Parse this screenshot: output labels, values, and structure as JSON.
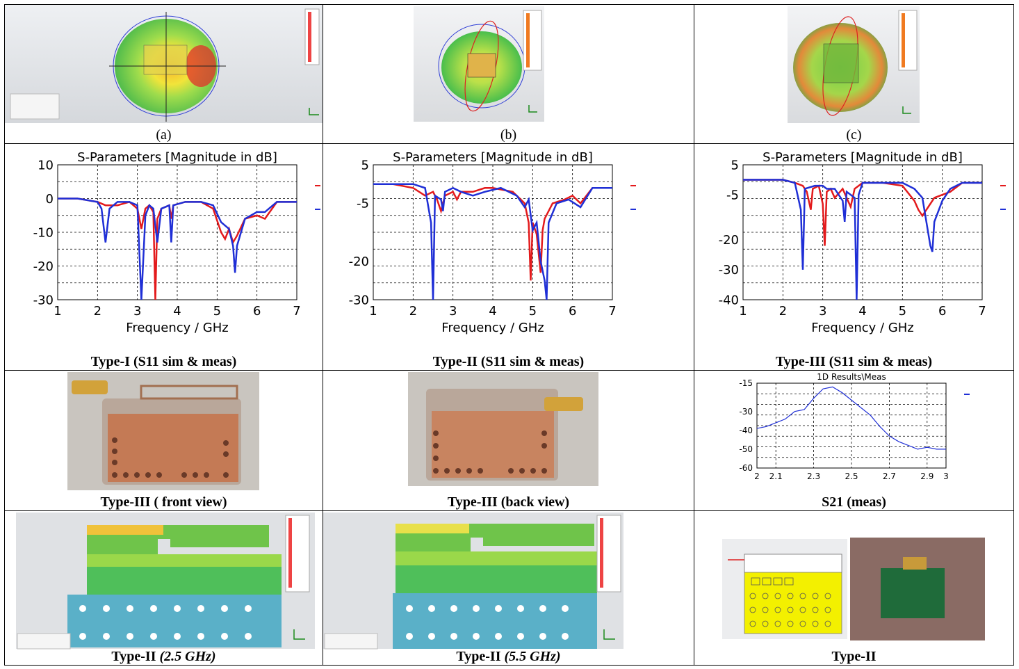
{
  "row1": {
    "captions": [
      "(a)",
      "(b)",
      "(c)"
    ]
  },
  "row2": {
    "plot_title": "S-Parameters [Magnitude in dB]",
    "xlabel": "Frequency / GHz",
    "captions": [
      "Type-I (S11 sim & meas)",
      "Type-II (S11 sim & meas)",
      "Type-III (S11 sim & meas)"
    ]
  },
  "row3": {
    "captions": [
      "Type-III ( front view)",
      "Type-III (back view)",
      "S21 (meas)"
    ],
    "s21_title": "1D Results\\Meas"
  },
  "row4": {
    "caption_type": "Type-II",
    "caption_freq_1": "(2.5 GHz)",
    "caption_freq_2": "(5.5 GHz)",
    "caption_3": "Type-II"
  },
  "colors": {
    "sim": "#e31a1c",
    "meas": "#1f2fd6",
    "s21": "#1f2fd6"
  },
  "chart_data": [
    {
      "type": "line",
      "title": "S-Parameters [Magnitude in dB]",
      "xlabel": "Frequency / GHz",
      "ylabel": "",
      "xlim": [
        1,
        7
      ],
      "ylim": [
        -30,
        10
      ],
      "xticks": [
        1,
        2,
        3,
        4,
        5,
        6,
        7
      ],
      "yticks": [
        10,
        0,
        -10,
        -20,
        -30
      ],
      "series": [
        {
          "color": "red",
          "x": [
            1,
            1.5,
            2,
            2.2,
            2.5,
            2.8,
            3.0,
            3.1,
            3.2,
            3.3,
            3.4,
            3.45,
            3.5,
            3.6,
            3.8,
            3.85,
            3.9,
            4.2,
            4.6,
            4.9,
            5.1,
            5.2,
            5.3,
            5.4,
            5.5,
            5.7,
            6.0,
            6.2,
            6.5,
            7
          ],
          "y": [
            0,
            0,
            -1,
            -2,
            -2,
            -1,
            -3,
            -9,
            -3,
            -2,
            -4,
            -30,
            -6,
            -3,
            -2,
            -6,
            -2,
            -1,
            -1,
            -3,
            -10,
            -12,
            -9,
            -13,
            -11,
            -6,
            -5,
            -6,
            -1,
            -1
          ]
        },
        {
          "color": "blue",
          "x": [
            1,
            1.5,
            2,
            2.1,
            2.2,
            2.3,
            2.5,
            2.8,
            3.0,
            3.1,
            3.2,
            3.3,
            3.4,
            3.5,
            3.6,
            3.8,
            3.85,
            3.9,
            4.2,
            4.6,
            4.9,
            5.1,
            5.2,
            5.3,
            5.4,
            5.45,
            5.5,
            5.7,
            6.0,
            6.2,
            6.5,
            7
          ],
          "y": [
            0,
            0,
            -1,
            -3,
            -13,
            -3,
            -1,
            -1,
            -2,
            -30,
            -5,
            -2,
            -3,
            -13,
            -3,
            -2,
            -13,
            -2,
            -1,
            -1,
            -2,
            -7,
            -8,
            -9,
            -14,
            -22,
            -14,
            -6,
            -4,
            -4,
            -1,
            -1
          ]
        }
      ]
    },
    {
      "type": "line",
      "title": "S-Parameters [Magnitude in dB]",
      "xlabel": "Frequency / GHz",
      "ylabel": "",
      "xlim": [
        1,
        7
      ],
      "ylim": [
        -30,
        5
      ],
      "xticks": [
        1,
        2,
        3,
        4,
        5,
        6,
        7
      ],
      "yticks": [
        5,
        -5,
        -20,
        -30
      ],
      "series": [
        {
          "color": "red",
          "x": [
            1,
            1.5,
            2,
            2.3,
            2.5,
            2.6,
            2.7,
            2.8,
            3.0,
            3.1,
            3.2,
            3.5,
            3.8,
            4.0,
            4.5,
            4.8,
            4.9,
            4.95,
            5.0,
            5.1,
            5.2,
            5.25,
            5.3,
            5.5,
            5.8,
            6.0,
            6.2,
            6.5,
            7
          ],
          "y": [
            0,
            0,
            -1,
            -3,
            -2,
            -4,
            -7,
            -3,
            -2,
            -4,
            -2,
            -2,
            -1,
            -1,
            -2,
            -5,
            -10,
            -25,
            -10,
            -13,
            -23,
            -12,
            -9,
            -5,
            -4,
            -3,
            -5,
            -1,
            -1
          ]
        },
        {
          "color": "blue",
          "x": [
            1,
            1.5,
            2,
            2.3,
            2.45,
            2.5,
            2.55,
            2.7,
            2.75,
            2.8,
            3.0,
            3.2,
            3.5,
            3.8,
            4.2,
            4.6,
            4.8,
            4.9,
            5.0,
            5.1,
            5.2,
            5.3,
            5.35,
            5.4,
            5.6,
            5.9,
            6.2,
            6.5,
            7
          ],
          "y": [
            0,
            0,
            0,
            -1,
            -10,
            -30,
            -3,
            -4,
            -7,
            -2,
            -1,
            -2,
            -3,
            -2,
            -1,
            -3,
            -6,
            -4,
            -12,
            -10,
            -20,
            -25,
            -30,
            -10,
            -5,
            -4,
            -6,
            -1,
            -1
          ]
        }
      ]
    },
    {
      "type": "line",
      "title": "S-Parameters [Magnitude in dB]",
      "xlabel": "Frequency / GHz",
      "ylabel": "",
      "xlim": [
        1,
        7
      ],
      "ylim": [
        -40,
        5
      ],
      "xticks": [
        1,
        2,
        3,
        4,
        5,
        6,
        7
      ],
      "yticks": [
        5,
        -5,
        -20,
        -30,
        -40
      ],
      "series": [
        {
          "color": "red",
          "x": [
            1,
            1.5,
            2,
            2.3,
            2.5,
            2.6,
            2.7,
            2.75,
            2.9,
            3.0,
            3.05,
            3.1,
            3.2,
            3.3,
            3.5,
            3.7,
            3.8,
            4.0,
            4.5,
            5.0,
            5.3,
            5.4,
            5.5,
            5.6,
            5.8,
            6.2,
            6.5,
            7
          ],
          "y": [
            0,
            0,
            0,
            -1,
            -2,
            -4,
            -10,
            -3,
            -2,
            -8,
            -22,
            -4,
            -3,
            -6,
            -3,
            -9,
            -3,
            -1,
            -1,
            -2,
            -7,
            -10,
            -12,
            -10,
            -6,
            -4,
            -1,
            -1
          ]
        },
        {
          "color": "blue",
          "x": [
            1,
            1.5,
            2,
            2.3,
            2.45,
            2.5,
            2.55,
            2.8,
            3.0,
            3.1,
            3.3,
            3.5,
            3.55,
            3.6,
            3.8,
            3.85,
            3.9,
            4.0,
            4.5,
            5.0,
            5.3,
            5.5,
            5.7,
            5.75,
            5.8,
            6.0,
            6.2,
            6.5,
            7
          ],
          "y": [
            0,
            0,
            0,
            -1,
            -10,
            -30,
            -3,
            -2,
            -2,
            -3,
            -3,
            -7,
            -14,
            -4,
            -6,
            -40,
            -5,
            -1,
            -1,
            -1,
            -3,
            -6,
            -22,
            -24,
            -14,
            -7,
            -3,
            -1,
            -1
          ]
        }
      ]
    },
    {
      "type": "line",
      "title": "1D Results\\Meas",
      "xlabel": "",
      "ylabel": "",
      "xlim": [
        2,
        3
      ],
      "ylim": [
        -60,
        -15
      ],
      "xticks": [
        2,
        2.1,
        2.3,
        2.5,
        2.7,
        2.9,
        3
      ],
      "yticks": [
        -15,
        -30,
        -40,
        -50,
        -60
      ],
      "series": [
        {
          "color": "blue",
          "x": [
            2,
            2.05,
            2.1,
            2.15,
            2.2,
            2.25,
            2.3,
            2.35,
            2.4,
            2.45,
            2.5,
            2.55,
            2.6,
            2.65,
            2.7,
            2.75,
            2.8,
            2.85,
            2.9,
            2.95,
            3
          ],
          "y": [
            -39,
            -38,
            -36,
            -34,
            -30,
            -29,
            -23,
            -18,
            -17,
            -20,
            -24,
            -28,
            -32,
            -38,
            -43,
            -46,
            -48,
            -50,
            -49,
            -50,
            -50
          ]
        }
      ]
    }
  ]
}
